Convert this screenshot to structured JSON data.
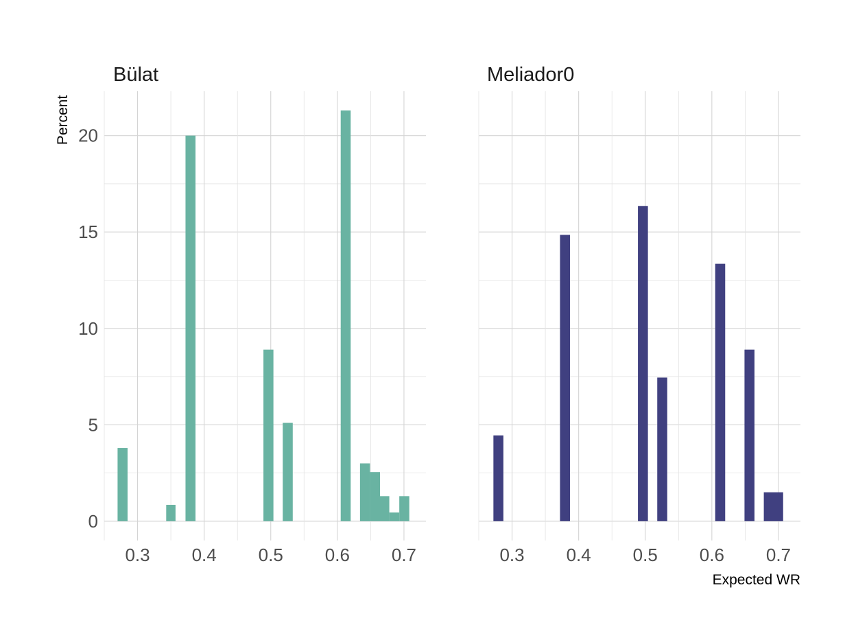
{
  "chart_data": {
    "type": "bar",
    "subtype": "histogram",
    "xlabel": "Expected WR",
    "ylabel": "Percent",
    "x_ticks": [
      "0.3",
      "0.4",
      "0.5",
      "0.6",
      "0.7"
    ],
    "y_ticks": [
      "0",
      "5",
      "10",
      "15",
      "20"
    ],
    "xlim": [
      0.25,
      0.733
    ],
    "ylim": [
      -1,
      22.3
    ],
    "grid": true,
    "legend": "none",
    "panels": [
      {
        "title": "Bülat",
        "color": "#69b3a2",
        "bins": [
          {
            "x0": 0.27,
            "x1": 0.285,
            "value": 3.8
          },
          {
            "x0": 0.343,
            "x1": 0.357,
            "value": 0.85
          },
          {
            "x0": 0.372,
            "x1": 0.387,
            "value": 20.0
          },
          {
            "x0": 0.489,
            "x1": 0.504,
            "value": 8.9
          },
          {
            "x0": 0.518,
            "x1": 0.533,
            "value": 5.1
          },
          {
            "x0": 0.605,
            "x1": 0.62,
            "value": 21.3
          },
          {
            "x0": 0.634,
            "x1": 0.649,
            "value": 3.0
          },
          {
            "x0": 0.649,
            "x1": 0.664,
            "value": 2.55
          },
          {
            "x0": 0.664,
            "x1": 0.678,
            "value": 1.3
          },
          {
            "x0": 0.678,
            "x1": 0.693,
            "value": 0.45
          },
          {
            "x0": 0.693,
            "x1": 0.708,
            "value": 1.3
          }
        ]
      },
      {
        "title": "Meliador0",
        "color": "#404080",
        "bins": [
          {
            "x0": 0.272,
            "x1": 0.287,
            "value": 4.45
          },
          {
            "x0": 0.372,
            "x1": 0.387,
            "value": 14.85
          },
          {
            "x0": 0.489,
            "x1": 0.504,
            "value": 16.35
          },
          {
            "x0": 0.518,
            "x1": 0.533,
            "value": 7.45
          },
          {
            "x0": 0.605,
            "x1": 0.62,
            "value": 13.35
          },
          {
            "x0": 0.649,
            "x1": 0.664,
            "value": 8.9
          },
          {
            "x0": 0.678,
            "x1": 0.707,
            "value": 1.5
          }
        ]
      }
    ]
  }
}
